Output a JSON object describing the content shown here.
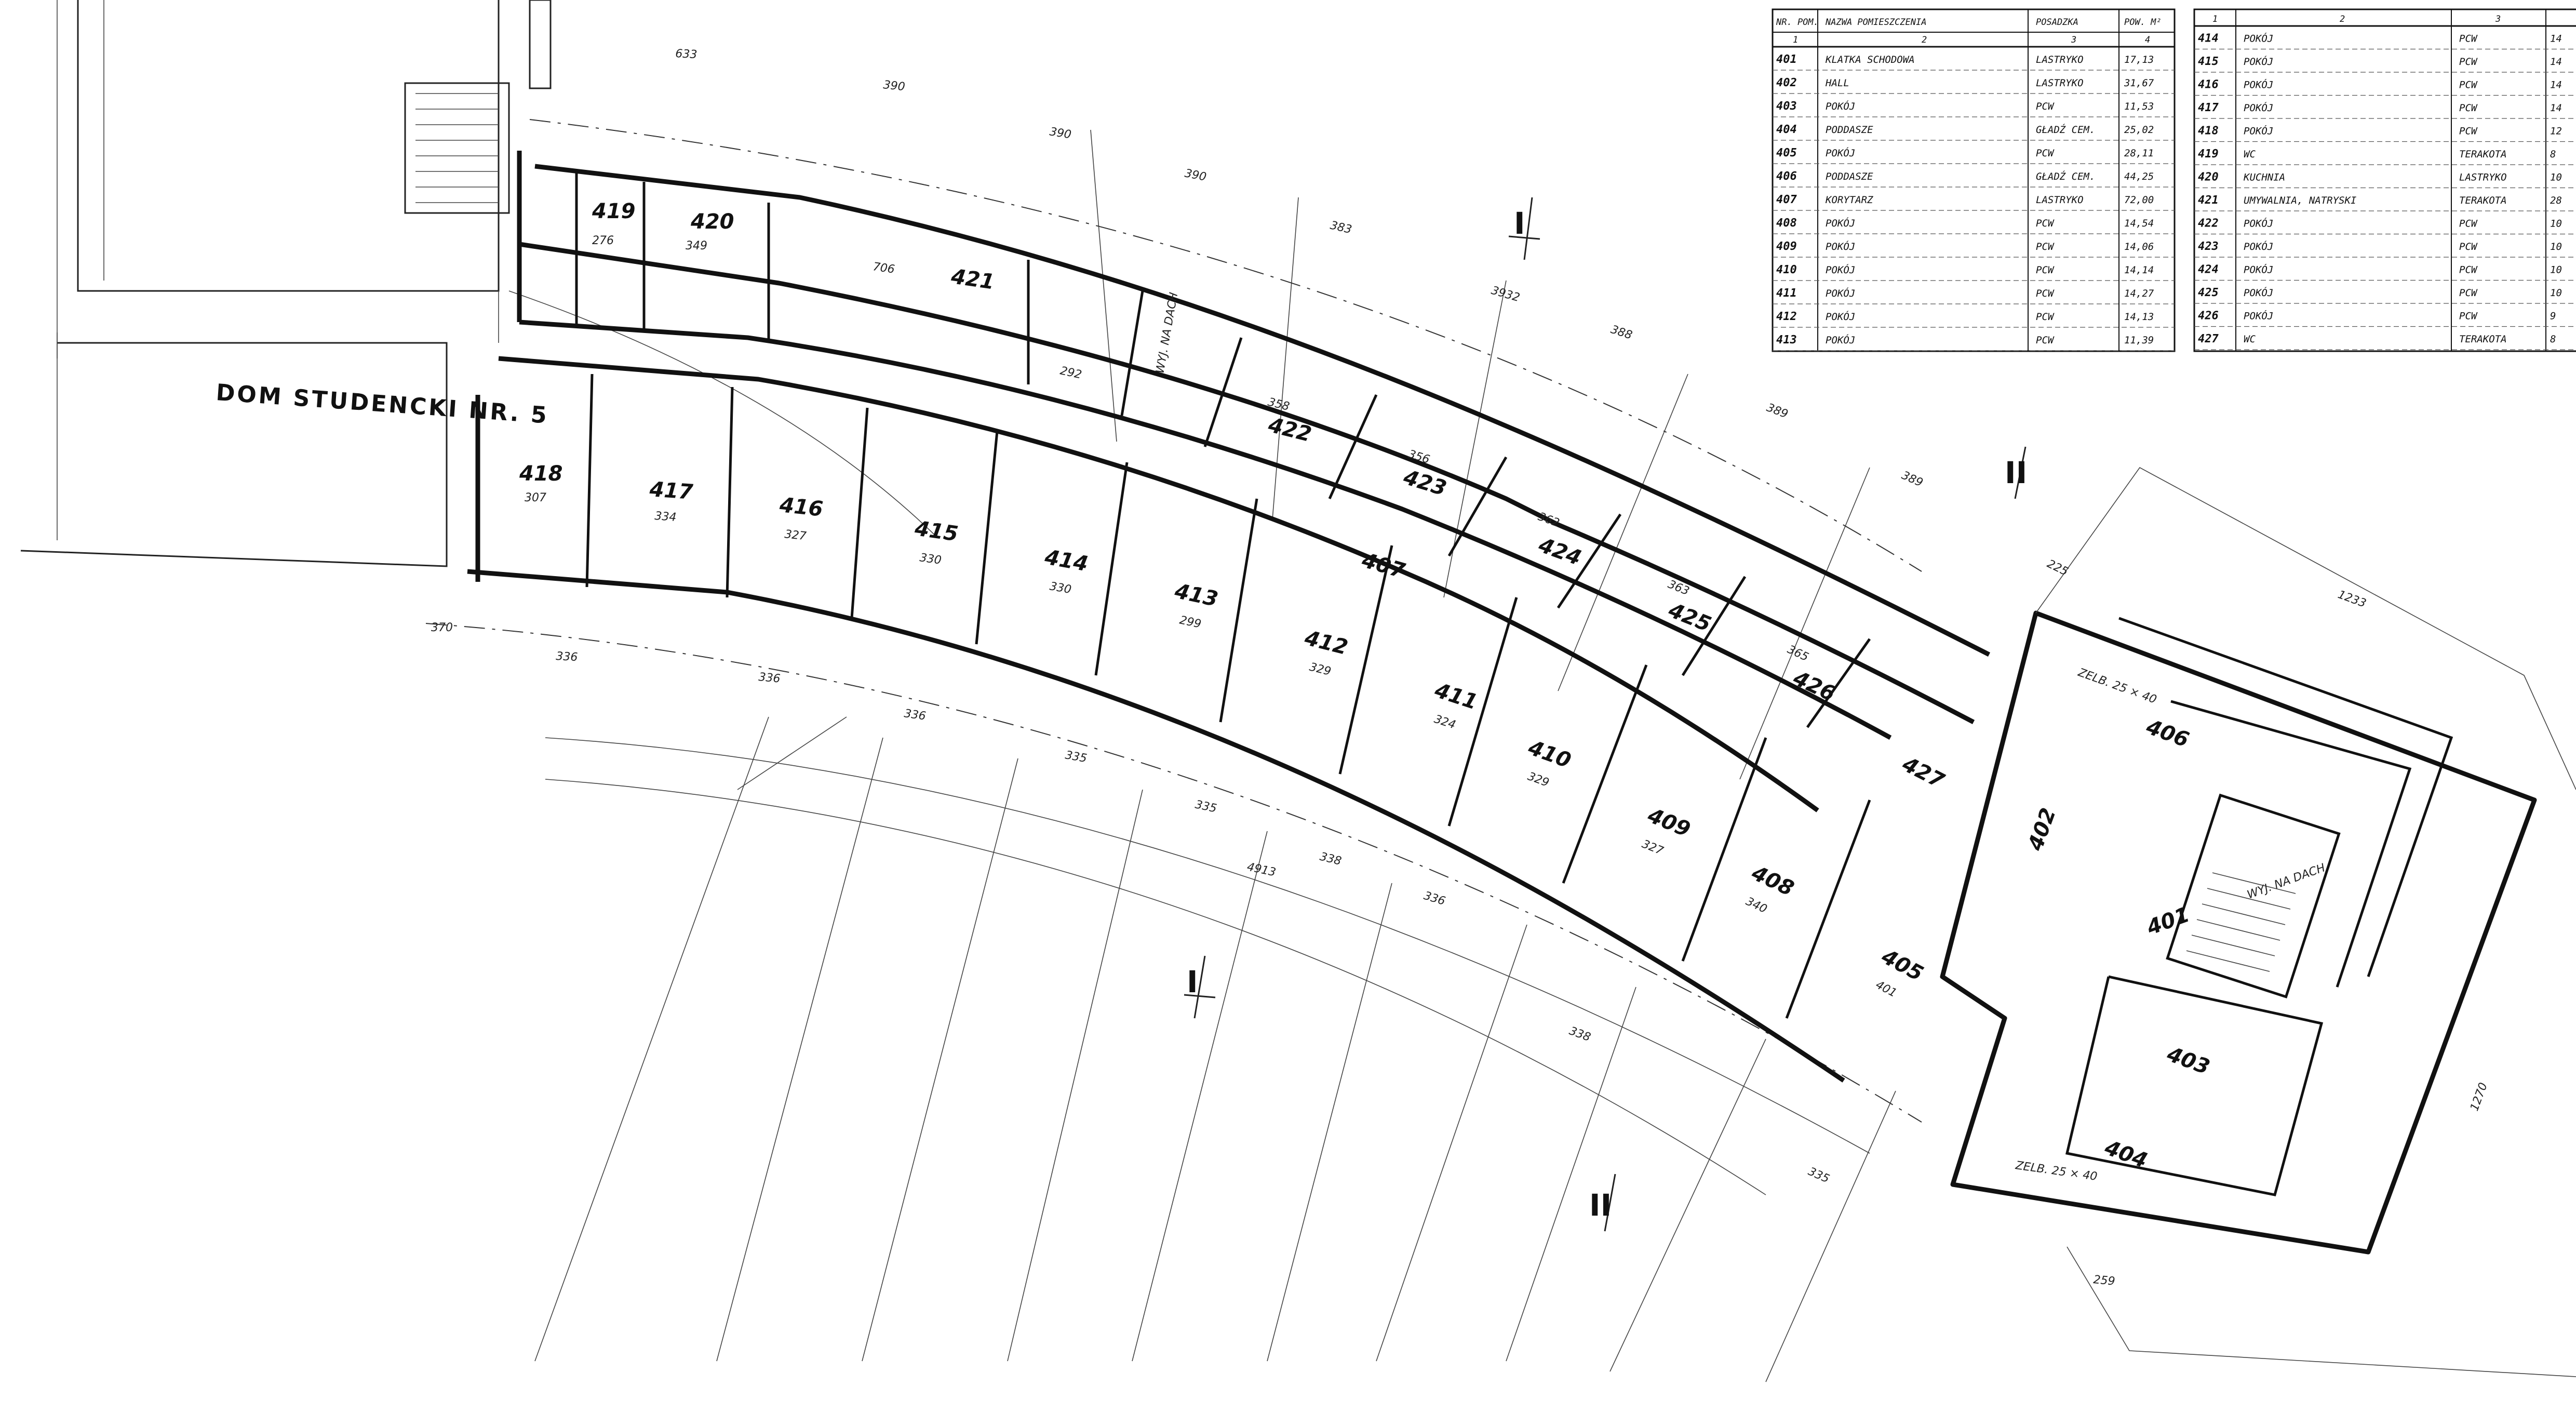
{
  "building_label": "DOM  STUDENCKI  NR. 5",
  "section_markers": [
    "I",
    "I",
    "II",
    "II"
  ],
  "table_left": {
    "headers": [
      "NR. POM.",
      "NAZWA POMIESZCZENIA",
      "POSADZKA",
      "POW. M²"
    ],
    "col_numbers": [
      "1",
      "2",
      "3",
      "4"
    ],
    "rows": [
      [
        "401",
        "KLATKA SCHODOWA",
        "LASTRYKO",
        "17,13"
      ],
      [
        "402",
        "HALL",
        "LASTRYKO",
        "31,67"
      ],
      [
        "403",
        "POKÓJ",
        "PCW",
        "11,53"
      ],
      [
        "404",
        "PODDASZE",
        "GŁADŹ CEM.",
        "25,02"
      ],
      [
        "405",
        "POKÓJ",
        "PCW",
        "28,11"
      ],
      [
        "406",
        "PODDASZE",
        "GŁADŹ CEM.",
        "44,25"
      ],
      [
        "407",
        "KORYTARZ",
        "LASTRYKO",
        "72,00"
      ],
      [
        "408",
        "POKÓJ",
        "PCW",
        "14,54"
      ],
      [
        "409",
        "POKÓJ",
        "PCW",
        "14,06"
      ],
      [
        "410",
        "POKÓJ",
        "PCW",
        "14,14"
      ],
      [
        "411",
        "POKÓJ",
        "PCW",
        "14,27"
      ],
      [
        "412",
        "POKÓJ",
        "PCW",
        "14,13"
      ],
      [
        "413",
        "POKÓJ",
        "PCW",
        "11,39"
      ]
    ]
  },
  "table_right": {
    "col_numbers": [
      "1",
      "2",
      "3"
    ],
    "rows": [
      [
        "414",
        "POKÓJ",
        "PCW",
        "14"
      ],
      [
        "415",
        "POKÓJ",
        "PCW",
        "14"
      ],
      [
        "416",
        "POKÓJ",
        "PCW",
        "14"
      ],
      [
        "417",
        "POKÓJ",
        "PCW",
        "14"
      ],
      [
        "418",
        "POKÓJ",
        "PCW",
        "12"
      ],
      [
        "419",
        "WC",
        "TERAKOTA",
        "8"
      ],
      [
        "420",
        "KUCHNIA",
        "LASTRYKO",
        "10"
      ],
      [
        "421",
        "UMYWALNIA, NATRYSKI",
        "TERAKOTA",
        "28"
      ],
      [
        "422",
        "POKÓJ",
        "PCW",
        "10"
      ],
      [
        "423",
        "POKÓJ",
        "PCW",
        "10"
      ],
      [
        "424",
        "POKÓJ",
        "PCW",
        "10"
      ],
      [
        "425",
        "POKÓJ",
        "PCW",
        "10"
      ],
      [
        "426",
        "POKÓJ",
        "PCW",
        "9"
      ],
      [
        "427",
        "WC",
        "TERAKOTA",
        "8"
      ]
    ]
  },
  "room_labels": {
    "north": [
      "419",
      "420",
      "421",
      "422",
      "423",
      "424",
      "425",
      "426",
      "427"
    ],
    "south": [
      "418",
      "417",
      "416",
      "415",
      "414",
      "413",
      "412",
      "411",
      "410",
      "409",
      "408",
      "405"
    ],
    "east": [
      "402",
      "401",
      "403",
      "404",
      "406"
    ],
    "corridor": "407"
  },
  "north_dims": [
    "276",
    "349",
    "706",
    "292",
    "358",
    "356",
    "362",
    "363",
    "365"
  ],
  "south_dims": [
    "307",
    "334",
    "327",
    "330",
    "330",
    "299",
    "329",
    "324",
    "329",
    "327",
    "340",
    "401"
  ],
  "exterior_dims": [
    "633",
    "390",
    "390",
    "390",
    "383",
    "388",
    "389",
    "389",
    "225",
    "1233",
    "1270",
    "259",
    "370",
    "336",
    "336",
    "336",
    "335",
    "335",
    "338",
    "336",
    "338",
    "335",
    "4913",
    "3932"
  ],
  "stair_labels": [
    "WYJ. NA DACH",
    "WYJ. NA DACH"
  ],
  "vent_labels": [
    "ZELB. 25 × 40",
    "ZELB. 25 × 40"
  ]
}
